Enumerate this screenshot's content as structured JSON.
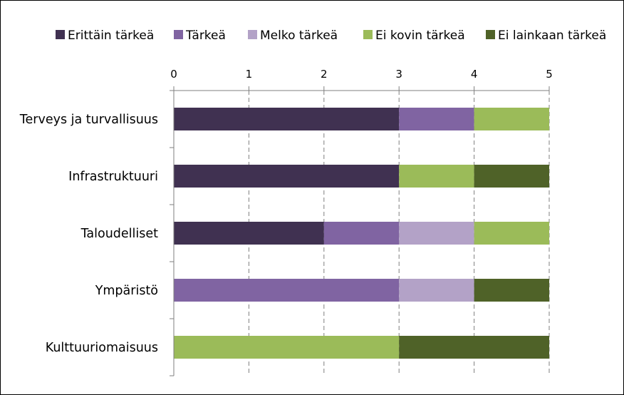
{
  "chart_data": {
    "type": "bar",
    "orientation": "horizontal",
    "stacked": true,
    "categories": [
      "Terveys ja turvallisuus",
      "Infrastruktuuri",
      "Taloudelliset",
      "Ympäristö",
      "Kulttuuriomaisuus"
    ],
    "series": [
      {
        "name": "Erittäin tärkeä",
        "color": "#403151",
        "values": [
          3,
          3,
          2,
          0,
          0
        ]
      },
      {
        "name": "Tärkeä",
        "color": "#8064a2",
        "values": [
          1,
          0,
          1,
          3,
          0
        ]
      },
      {
        "name": "Melko tärkeä",
        "color": "#b3a2c7",
        "values": [
          0,
          0,
          1,
          1,
          0
        ]
      },
      {
        "name": "Ei kovin tärkeä",
        "color": "#9bbb59",
        "values": [
          1,
          1,
          1,
          0,
          3
        ]
      },
      {
        "name": "Ei lainkaan tärkeä",
        "color": "#4f6228",
        "values": [
          0,
          1,
          0,
          1,
          2
        ]
      }
    ],
    "xlim": [
      0,
      5
    ],
    "xticks": [
      "0",
      "1",
      "2",
      "3",
      "4",
      "5"
    ],
    "x_axis_position": "top",
    "grid": "vertical dashed",
    "legend_position": "top"
  }
}
